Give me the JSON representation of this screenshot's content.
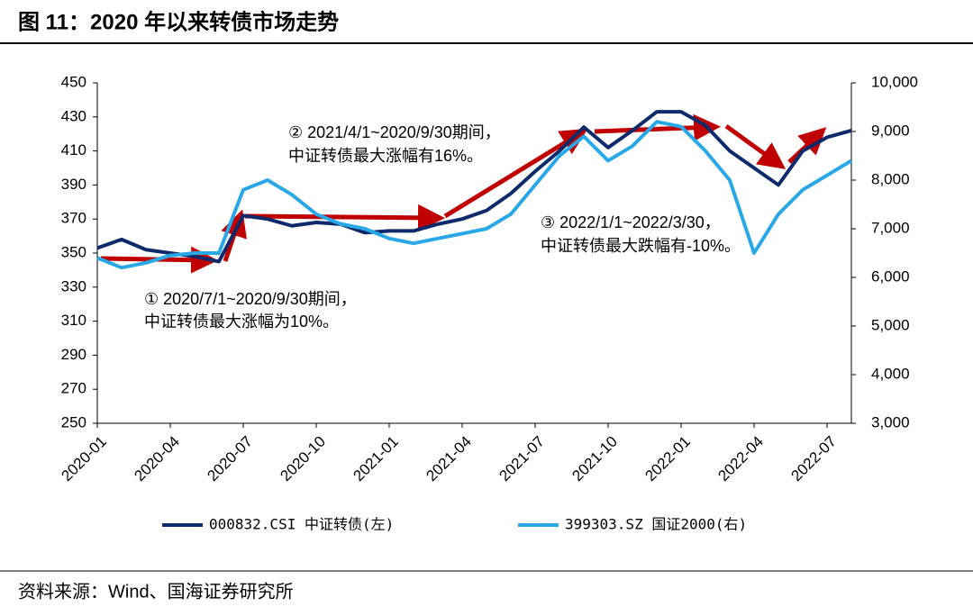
{
  "chart_data": {
    "type": "line",
    "title": "图 11：2020 年以来转债市场走势",
    "source": "资料来源：Wind、国海证券研究所",
    "annotations": [
      "① 2020/7/1~2020/9/30期间，",
      "中证转债最大涨幅为10%。",
      "② 2021/4/1~2020/9/30期间，",
      "中证转债最大涨幅有16%。",
      "③ 2022/1/1~2022/3/30，",
      "中证转债最大跌幅有-10%。"
    ],
    "x": [
      "2020-01",
      "2020-02",
      "2020-03",
      "2020-04",
      "2020-05",
      "2020-06",
      "2020-07",
      "2020-08",
      "2020-09",
      "2020-10",
      "2020-11",
      "2020-12",
      "2021-01",
      "2021-02",
      "2021-03",
      "2021-04",
      "2021-05",
      "2021-06",
      "2021-07",
      "2021-08",
      "2021-09",
      "2021-10",
      "2021-11",
      "2021-12",
      "2022-01",
      "2022-02",
      "2022-03",
      "2022-04",
      "2022-05",
      "2022-06",
      "2022-07",
      "2022-08"
    ],
    "xlim": [
      "2020-01",
      "2022-08"
    ],
    "xticks": [
      "2020-01",
      "2020-04",
      "2020-07",
      "2020-10",
      "2021-01",
      "2021-04",
      "2021-07",
      "2021-10",
      "2022-01",
      "2022-04",
      "2022-07"
    ],
    "series": [
      {
        "name": "000832.CSI 中证转债(左)",
        "color": "#0d2b6b",
        "values": [
          353,
          358,
          352,
          350,
          348,
          345,
          372,
          370,
          366,
          368,
          367,
          362,
          363,
          363,
          367,
          370,
          375,
          385,
          398,
          410,
          424,
          412,
          422,
          433,
          433,
          425,
          410,
          400,
          390,
          410,
          418,
          422
        ]
      },
      {
        "name": "399303.SZ 国证2000(右)",
        "color": "#29a8e8",
        "axis": "y2",
        "values": [
          6400,
          6200,
          6300,
          6450,
          6500,
          6500,
          7800,
          8000,
          7700,
          7300,
          7100,
          7000,
          6800,
          6700,
          6800,
          6900,
          7000,
          7300,
          7900,
          8500,
          8900,
          8400,
          8700,
          9200,
          9100,
          8600,
          8000,
          6500,
          7300,
          7800,
          8100,
          8400
        ]
      }
    ],
    "ylim": [
      250,
      450
    ],
    "yticks": [
      250,
      270,
      290,
      310,
      330,
      350,
      370,
      390,
      410,
      430,
      450
    ],
    "y2lim": [
      3000,
      10000
    ],
    "y2ticks": [
      {
        "value": 3000,
        "label": "3,000"
      },
      {
        "value": 4000,
        "label": "4,000"
      },
      {
        "value": 5000,
        "label": "5,000"
      },
      {
        "value": 6000,
        "label": "6,000"
      },
      {
        "value": 7000,
        "label": "7,000"
      },
      {
        "value": 8000,
        "label": "8,000"
      },
      {
        "value": 9000,
        "label": "9,000"
      },
      {
        "value": 10000,
        "label": "10,000"
      }
    ],
    "legend": "bottom"
  }
}
